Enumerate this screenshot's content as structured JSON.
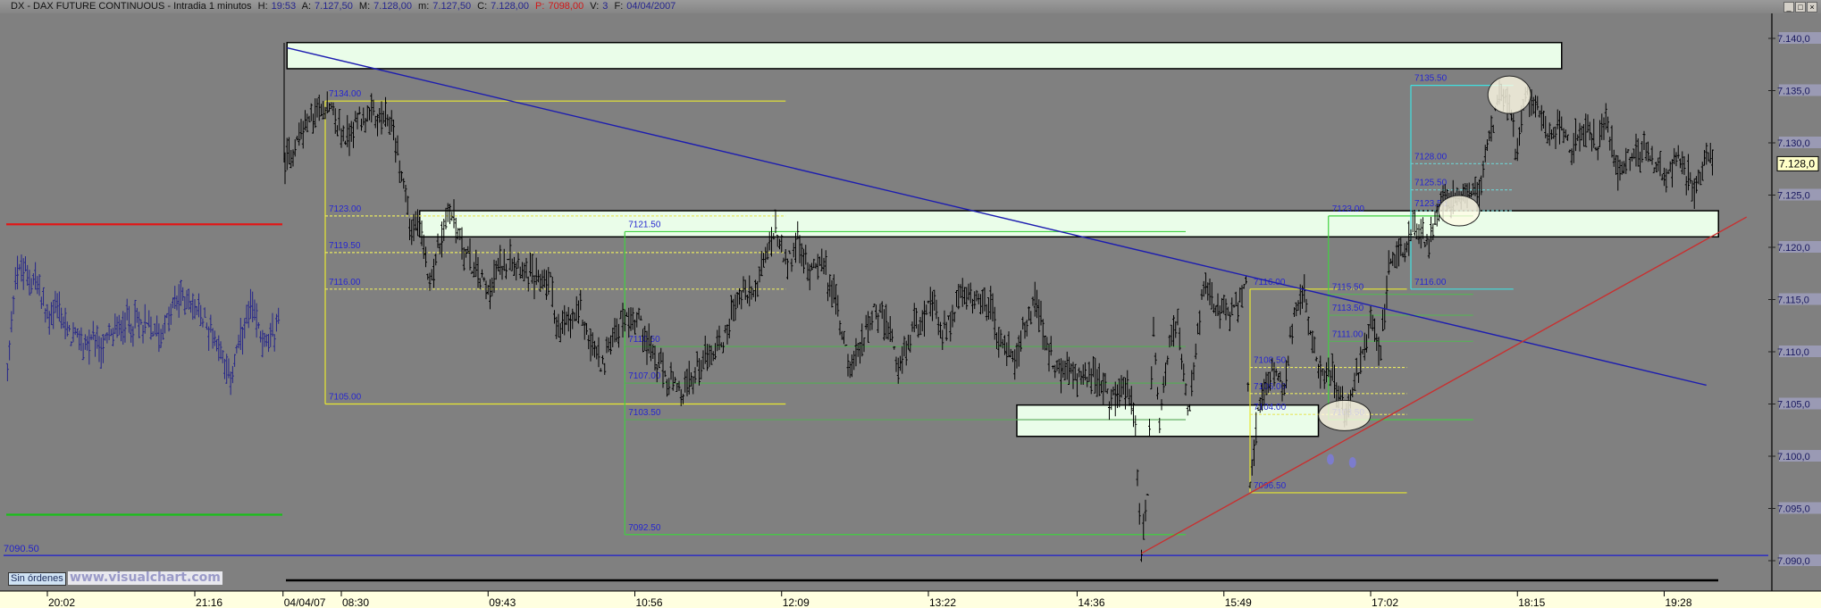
{
  "window": {
    "title": "DX - DAX FUTURE CONTINUOUS - Intradia 1 minutos",
    "h_label": "H:",
    "h_value": "19:53",
    "a_label": "A:",
    "a_value": "7.127,50",
    "m_label": "M:",
    "m_value": "7.128,00",
    "mn_label": "m:",
    "mn_value": "7.127,50",
    "c_label": "C:",
    "c_value": "7.128,00",
    "p_label": "P:",
    "p_value": "7098,00",
    "v_label": "V:",
    "v_value": "3",
    "f_label": "F:",
    "f_value": "04/04/2007",
    "buttons": {
      "minimize": "_",
      "maximize": "□",
      "close": "×"
    }
  },
  "footer": {
    "orders_label": "Sin órdenes",
    "watermark": "www.visualchart.com"
  },
  "chart_data": {
    "type": "bar",
    "title": "DX - DAX FUTURE CONTINUOUS - Intradia 1 minutos",
    "ylim": [
      7088,
      7142
    ],
    "y_ticks": [
      {
        "value": 7140,
        "label": "7.140,0"
      },
      {
        "value": 7135,
        "label": "7.135,0"
      },
      {
        "value": 7130,
        "label": "7.130,0"
      },
      {
        "value": 7125,
        "label": "7.125,0"
      },
      {
        "value": 7120,
        "label": "7.120,0"
      },
      {
        "value": 7115,
        "label": "7.115,0"
      },
      {
        "value": 7110,
        "label": "7.110,0"
      },
      {
        "value": 7105,
        "label": "7.105,0"
      },
      {
        "value": 7100,
        "label": "7.100,0"
      },
      {
        "value": 7095,
        "label": "7.095,0"
      },
      {
        "value": 7090,
        "label": "7.090,0"
      }
    ],
    "x_ticks": [
      {
        "label": "20:02",
        "session": "prev",
        "time": "20:02"
      },
      {
        "label": "21:16",
        "session": "prev",
        "time": "21:16"
      },
      {
        "label": "04/04/07",
        "session": "cur",
        "time": "08:01"
      },
      {
        "label": "08:30",
        "session": "cur",
        "time": "08:30"
      },
      {
        "label": "09:43",
        "session": "cur",
        "time": "09:43"
      },
      {
        "label": "10:56",
        "session": "cur",
        "time": "10:56"
      },
      {
        "label": "12:09",
        "session": "cur",
        "time": "12:09"
      },
      {
        "label": "13:22",
        "session": "cur",
        "time": "13:22"
      },
      {
        "label": "14:36",
        "session": "cur",
        "time": "14:36"
      },
      {
        "label": "15:49",
        "session": "cur",
        "time": "15:49"
      },
      {
        "label": "17:02",
        "session": "cur",
        "time": "17:02"
      },
      {
        "label": "18:15",
        "session": "cur",
        "time": "18:15"
      },
      {
        "label": "19:28",
        "session": "cur",
        "time": "19:28"
      }
    ],
    "last_price": {
      "value": 7128.0,
      "label": "7.128,0"
    },
    "previous_session": {
      "color": "#26268a",
      "points": [
        [
          "19:42",
          7108.1
        ],
        [
          "19:46",
          7117.8
        ],
        [
          "19:56",
          7117.0
        ],
        [
          "20:02",
          7113.2
        ],
        [
          "20:07",
          7114.4
        ],
        [
          "20:13",
          7111.4
        ],
        [
          "20:29",
          7110.3
        ],
        [
          "20:42",
          7113.2
        ],
        [
          "20:59",
          7111.8
        ],
        [
          "21:09",
          7115.5
        ],
        [
          "21:18",
          7113.7
        ],
        [
          "21:28",
          7111.0
        ],
        [
          "21:33",
          7107.3
        ],
        [
          "21:44",
          7114.0
        ],
        [
          "21:53",
          7110.3
        ],
        [
          "21:58",
          7113.2
        ],
        [
          "21:59",
          7119.4
        ]
      ],
      "resistance": {
        "price": 7122.2,
        "color": "#e01818"
      },
      "support": {
        "price": 7094.4,
        "color": "#18c018"
      }
    },
    "session": {
      "color": "#000000",
      "points": [
        [
          "08:02",
          7128.0
        ],
        [
          "08:10",
          7131.1
        ],
        [
          "08:22",
          7133.9
        ],
        [
          "08:32",
          7130.3
        ],
        [
          "08:39",
          7132.6
        ],
        [
          "08:49",
          7132.2
        ],
        [
          "08:55",
          7131.8
        ],
        [
          "09:01",
          7126.2
        ],
        [
          "09:05",
          7121.4
        ],
        [
          "09:08",
          7122.2
        ],
        [
          "09:14",
          7117.0
        ],
        [
          "09:24",
          7123.7
        ],
        [
          "09:34",
          7118.5
        ],
        [
          "09:43",
          7116.2
        ],
        [
          "09:54",
          7119.6
        ],
        [
          "10:06",
          7117.0
        ],
        [
          "10:14",
          7117.0
        ],
        [
          "10:18",
          7111.8
        ],
        [
          "10:29",
          7114.0
        ],
        [
          "10:35",
          7110.3
        ],
        [
          "10:41",
          7108.5
        ],
        [
          "10:42",
          7110.3
        ],
        [
          "10:50",
          7113.2
        ],
        [
          "10:58",
          7113.2
        ],
        [
          "11:06",
          7109.2
        ],
        [
          "11:19",
          7105.5
        ],
        [
          "11:29",
          7109.2
        ],
        [
          "11:40",
          7111.0
        ],
        [
          "11:46",
          7115.1
        ],
        [
          "11:56",
          7115.9
        ],
        [
          "12:03",
          7120.3
        ],
        [
          "12:06",
          7121.4
        ],
        [
          "12:11",
          7118.1
        ],
        [
          "12:17",
          7120.3
        ],
        [
          "12:22",
          7117.7
        ],
        [
          "12:28",
          7119.2
        ],
        [
          "12:36",
          7114.8
        ],
        [
          "12:44",
          7108.1
        ],
        [
          "12:54",
          7114.0
        ],
        [
          "13:01",
          7112.9
        ],
        [
          "13:07",
          7108.1
        ],
        [
          "13:15",
          7112.9
        ],
        [
          "13:24",
          7114.4
        ],
        [
          "13:30",
          7111.8
        ],
        [
          "13:38",
          7115.5
        ],
        [
          "13:46",
          7114.4
        ],
        [
          "13:53",
          7114.4
        ],
        [
          "13:57",
          7111.0
        ],
        [
          "14:05",
          7109.6
        ],
        [
          "14:10",
          7112.1
        ],
        [
          "14:15",
          7115.0
        ],
        [
          "14:24",
          7108.5
        ],
        [
          "14:34",
          7108.1
        ],
        [
          "14:43",
          7107.7
        ],
        [
          "14:53",
          7105.5
        ],
        [
          "15:01",
          7106.6
        ],
        [
          "15:05",
          7102.9
        ],
        [
          "15:08",
          7090.7
        ],
        [
          "15:11",
          7096.6
        ],
        [
          "15:14",
          7112.9
        ],
        [
          "15:17",
          7102.9
        ],
        [
          "15:22",
          7111.0
        ],
        [
          "15:26",
          7112.9
        ],
        [
          "15:31",
          7103.7
        ],
        [
          "15:39",
          7115.9
        ],
        [
          "15:45",
          7114.0
        ],
        [
          "15:52",
          7113.2
        ],
        [
          "16:00",
          7116.2
        ],
        [
          "16:02",
          7097.4
        ],
        [
          "16:06",
          7104.8
        ],
        [
          "16:12",
          7108.1
        ],
        [
          "16:19",
          7106.6
        ],
        [
          "16:25",
          7114.8
        ],
        [
          "16:29",
          7115.5
        ],
        [
          "16:35",
          7108.5
        ],
        [
          "16:42",
          7108.1
        ],
        [
          "16:50",
          7104.0
        ],
        [
          "16:56",
          7108.5
        ],
        [
          "17:02",
          7113.2
        ],
        [
          "17:07",
          7110.3
        ],
        [
          "17:11",
          7118.5
        ],
        [
          "17:19",
          7119.2
        ],
        [
          "17:23",
          7122.2
        ],
        [
          "17:31",
          7119.9
        ],
        [
          "17:37",
          7125.1
        ],
        [
          "17:46",
          7124.0
        ],
        [
          "17:56",
          7125.9
        ],
        [
          "18:00",
          7129.6
        ],
        [
          "18:06",
          7134.8
        ],
        [
          "18:11",
          7133.7
        ],
        [
          "18:14",
          7128.8
        ],
        [
          "18:19",
          7134.8
        ],
        [
          "18:25",
          7133.7
        ],
        [
          "18:30",
          7131.1
        ],
        [
          "18:36",
          7131.5
        ],
        [
          "18:42",
          7129.6
        ],
        [
          "18:50",
          7131.1
        ],
        [
          "18:55",
          7129.6
        ],
        [
          "18:59",
          7132.6
        ],
        [
          "19:05",
          7127.0
        ],
        [
          "19:09",
          7128.9
        ],
        [
          "19:18",
          7128.9
        ],
        [
          "19:28",
          7127.0
        ],
        [
          "19:36",
          7128.1
        ],
        [
          "19:44",
          7125.1
        ],
        [
          "19:49",
          7129.2
        ],
        [
          "19:53",
          7128.0
        ]
      ]
    },
    "annotations": {
      "boxes": [
        {
          "from": "08:03",
          "to": "18:37",
          "top": 7139.6,
          "bottom": 7137.1
        },
        {
          "from": "09:09",
          "to": "19:55",
          "top": 7123.5,
          "bottom": 7121.0
        },
        {
          "from": "14:06",
          "to": "16:36",
          "top": 7104.9,
          "bottom": 7101.9
        }
      ],
      "trendlines": [
        {
          "color": "#1c1cb0",
          "from": [
            "08:03",
            7139.1
          ],
          "to": [
            "19:49",
            7106.8
          ]
        },
        {
          "color": "#c83030",
          "from": [
            "15:08",
            7090.7
          ],
          "to": [
            "20:09",
            7122.9
          ]
        }
      ],
      "horizontal_line": {
        "price": 7090.5,
        "label": "7090.50",
        "color": "#1c1cd0"
      },
      "fibonacci": [
        {
          "color": "#e8e830",
          "dash_color": "#e8e860",
          "from": "08:22",
          "to": "12:11",
          "levels": [
            {
              "price": 7134.0,
              "label": "7134.00"
            },
            {
              "price": 7123.0,
              "label": "7123.00"
            },
            {
              "price": 7119.5,
              "label": "7119.50"
            },
            {
              "price": 7116.0,
              "label": "7116.00"
            },
            {
              "price": 7105.0,
              "label": "7105.00"
            }
          ]
        },
        {
          "color": "#40d040",
          "dash_color": "#58a858",
          "from": "10:51",
          "to": "15:30",
          "levels": [
            {
              "price": 7121.5,
              "label": "7121.50"
            },
            {
              "price": 7110.5,
              "label": "7110.50"
            },
            {
              "price": 7107.0,
              "label": "7107.00"
            },
            {
              "price": 7103.5,
              "label": "7103.50"
            },
            {
              "price": 7092.5,
              "label": "7092.50"
            }
          ]
        },
        {
          "color": "#e8e830",
          "dash_color": "#e8e860",
          "from": "16:02",
          "to": "17:20",
          "levels": [
            {
              "price": 7116.0,
              "label": "7116.00"
            },
            {
              "price": 7108.5,
              "label": "7108.50"
            },
            {
              "price": 7106.0,
              "label": "7106.00"
            },
            {
              "price": 7104.0,
              "label": "7104.00"
            },
            {
              "price": 7096.5,
              "label": "7096.50"
            }
          ]
        },
        {
          "color": "#40d040",
          "dash_color": "#58b058",
          "from": "16:41",
          "to": "17:53",
          "levels": [
            {
              "price": 7123.0,
              "label": "7123.00"
            },
            {
              "price": 7115.5,
              "label": "7115.50"
            },
            {
              "price": 7113.5,
              "label": "7113.50"
            },
            {
              "price": 7111.0,
              "label": "7111.00"
            },
            {
              "price": 7103.5,
              "label": "7103.50"
            }
          ]
        },
        {
          "color": "#40e0e0",
          "dash_color": "#70c8c8",
          "from": "17:22",
          "to": "18:13",
          "levels": [
            {
              "price": 7135.5,
              "label": "7135.50"
            },
            {
              "price": 7128.0,
              "label": "7128.00"
            },
            {
              "price": 7125.5,
              "label": "7125.50"
            },
            {
              "price": 7123.5,
              "label": "7123.50"
            },
            {
              "price": 7116.0,
              "label": "7116.00"
            }
          ]
        }
      ],
      "ellipses": [
        {
          "time": "18:11",
          "price": 7134.6
        },
        {
          "time": "17:46",
          "price": 7123.5
        },
        {
          "time": "16:49",
          "price": 7103.9
        }
      ],
      "markers": [
        {
          "time": "16:42",
          "price": 7099.7,
          "color": "#7a7ae0"
        },
        {
          "time": "16:53",
          "price": 7099.4,
          "color": "#7a7ae0"
        }
      ]
    }
  }
}
